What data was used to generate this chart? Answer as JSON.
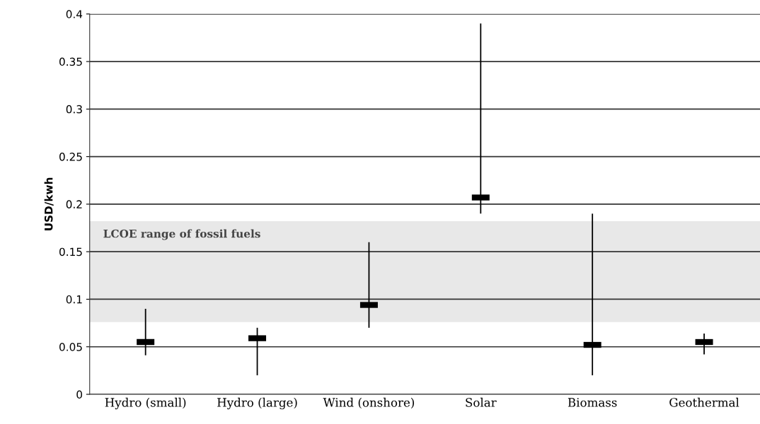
{
  "chart_data": {
    "type": "scatter",
    "ylabel": "USD/kwh",
    "categories": [
      "Hydro (small)",
      "Hydro (large)",
      "Wind (onshore)",
      "Solar",
      "Biomass",
      "Geothermal"
    ],
    "series": [
      {
        "color": "#000000",
        "values": [
          0.055,
          0.059,
          0.094,
          0.207,
          0.052,
          0.055
        ],
        "errors": [
          [
            0.041,
            0.09
          ],
          [
            0.02,
            0.07
          ],
          [
            0.07,
            0.16
          ],
          [
            0.19,
            0.39
          ],
          [
            0.02,
            0.19
          ],
          [
            0.042,
            0.064
          ]
        ]
      }
    ],
    "bands": [
      {
        "axis": "y",
        "from": 0.076,
        "to": 0.182,
        "label": "LCOE range of fossil fuels",
        "color": "#e8e8e8"
      }
    ],
    "ylim": [
      0,
      0.4
    ],
    "yticks": [
      0,
      0.05,
      0.1,
      0.15,
      0.2,
      0.25,
      0.3,
      0.35,
      0.4
    ],
    "grid": "y"
  }
}
